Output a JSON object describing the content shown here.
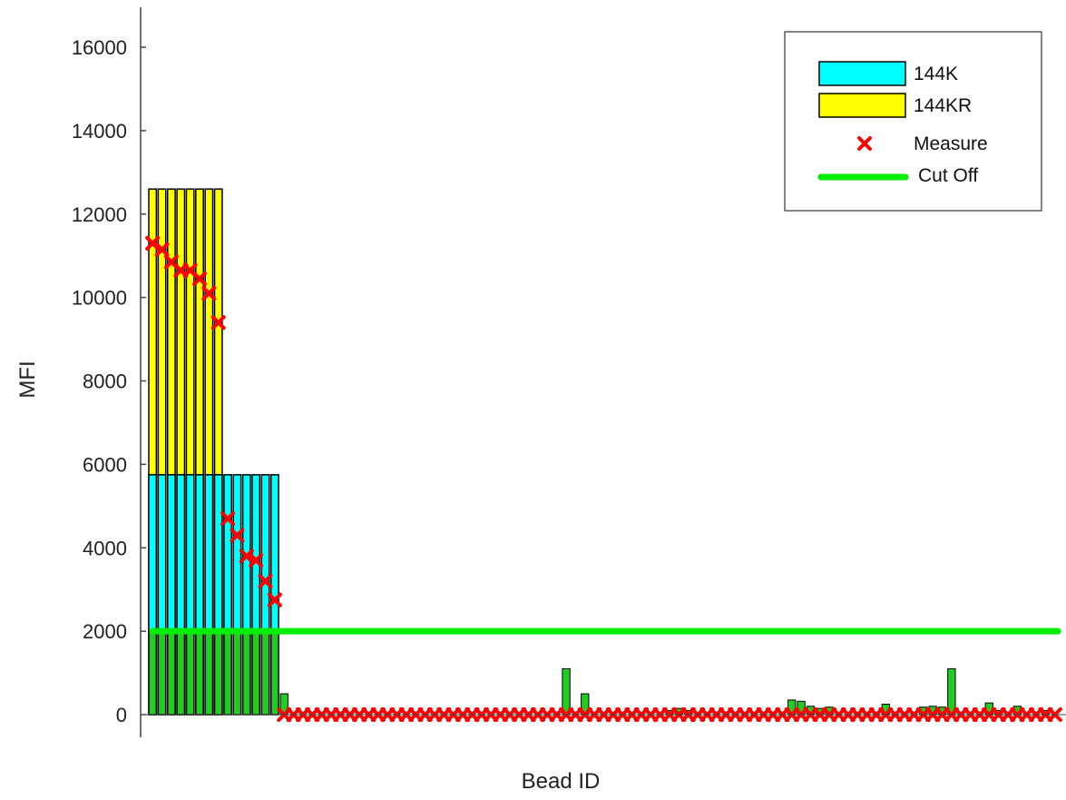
{
  "chart_data": {
    "type": "bar",
    "xlabel": "Bead ID",
    "ylabel": "MFI",
    "ylim": [
      0,
      17000
    ],
    "yticks": [
      0,
      2000,
      4000,
      6000,
      8000,
      10000,
      12000,
      14000,
      16000
    ],
    "ytick_labels": [
      "0",
      "2000",
      "4000",
      "6000",
      "8000",
      "10000",
      "12000",
      "14000",
      "16000"
    ],
    "num_beads": 97,
    "colors": {
      "144K": "#00ffff",
      "144KR": "#ffff00",
      "bar": "#22cc22",
      "measure": "#ff0000",
      "cutoff": "#00ee00"
    },
    "legend": {
      "placement": "top-right",
      "entries": [
        {
          "key": "144K",
          "label": "144K",
          "style": "patch"
        },
        {
          "key": "144KR",
          "label": "144KR",
          "style": "patch"
        },
        {
          "key": "measure",
          "label": "Measure",
          "style": "marker-x"
        },
        {
          "key": "cutoff",
          "label": "Cut Off",
          "style": "line"
        }
      ]
    },
    "groups": [
      {
        "name": "144KR",
        "start": 1,
        "end": 8,
        "bottom": 5750,
        "top": 12600
      },
      {
        "name": "144K",
        "start": 1,
        "end": 14,
        "bottom": 2000,
        "top": 5750
      }
    ],
    "cutoff": 2000,
    "bars": [
      {
        "id": 15,
        "value": 500
      },
      {
        "id": 45,
        "value": 1100
      },
      {
        "id": 47,
        "value": 500
      },
      {
        "id": 56,
        "value": 100
      },
      {
        "id": 57,
        "value": 150
      },
      {
        "id": 58,
        "value": 100
      },
      {
        "id": 69,
        "value": 350
      },
      {
        "id": 70,
        "value": 320
      },
      {
        "id": 71,
        "value": 200
      },
      {
        "id": 72,
        "value": 150
      },
      {
        "id": 73,
        "value": 180
      },
      {
        "id": 79,
        "value": 250
      },
      {
        "id": 83,
        "value": 180
      },
      {
        "id": 84,
        "value": 200
      },
      {
        "id": 85,
        "value": 180
      },
      {
        "id": 86,
        "value": 1100
      },
      {
        "id": 90,
        "value": 280
      },
      {
        "id": 91,
        "value": 100
      },
      {
        "id": 93,
        "value": 200
      },
      {
        "id": 96,
        "value": 100
      }
    ],
    "measures": [
      {
        "id": 1,
        "value": 11300
      },
      {
        "id": 2,
        "value": 11150
      },
      {
        "id": 3,
        "value": 10850
      },
      {
        "id": 4,
        "value": 10650
      },
      {
        "id": 5,
        "value": 10650
      },
      {
        "id": 6,
        "value": 10450
      },
      {
        "id": 7,
        "value": 10100
      },
      {
        "id": 8,
        "value": 9400
      },
      {
        "id": 9,
        "value": 4700
      },
      {
        "id": 10,
        "value": 4300
      },
      {
        "id": 11,
        "value": 3800
      },
      {
        "id": 12,
        "value": 3700
      },
      {
        "id": 13,
        "value": 3200
      },
      {
        "id": 14,
        "value": 2750
      }
    ],
    "measures_zero_from": 15
  }
}
